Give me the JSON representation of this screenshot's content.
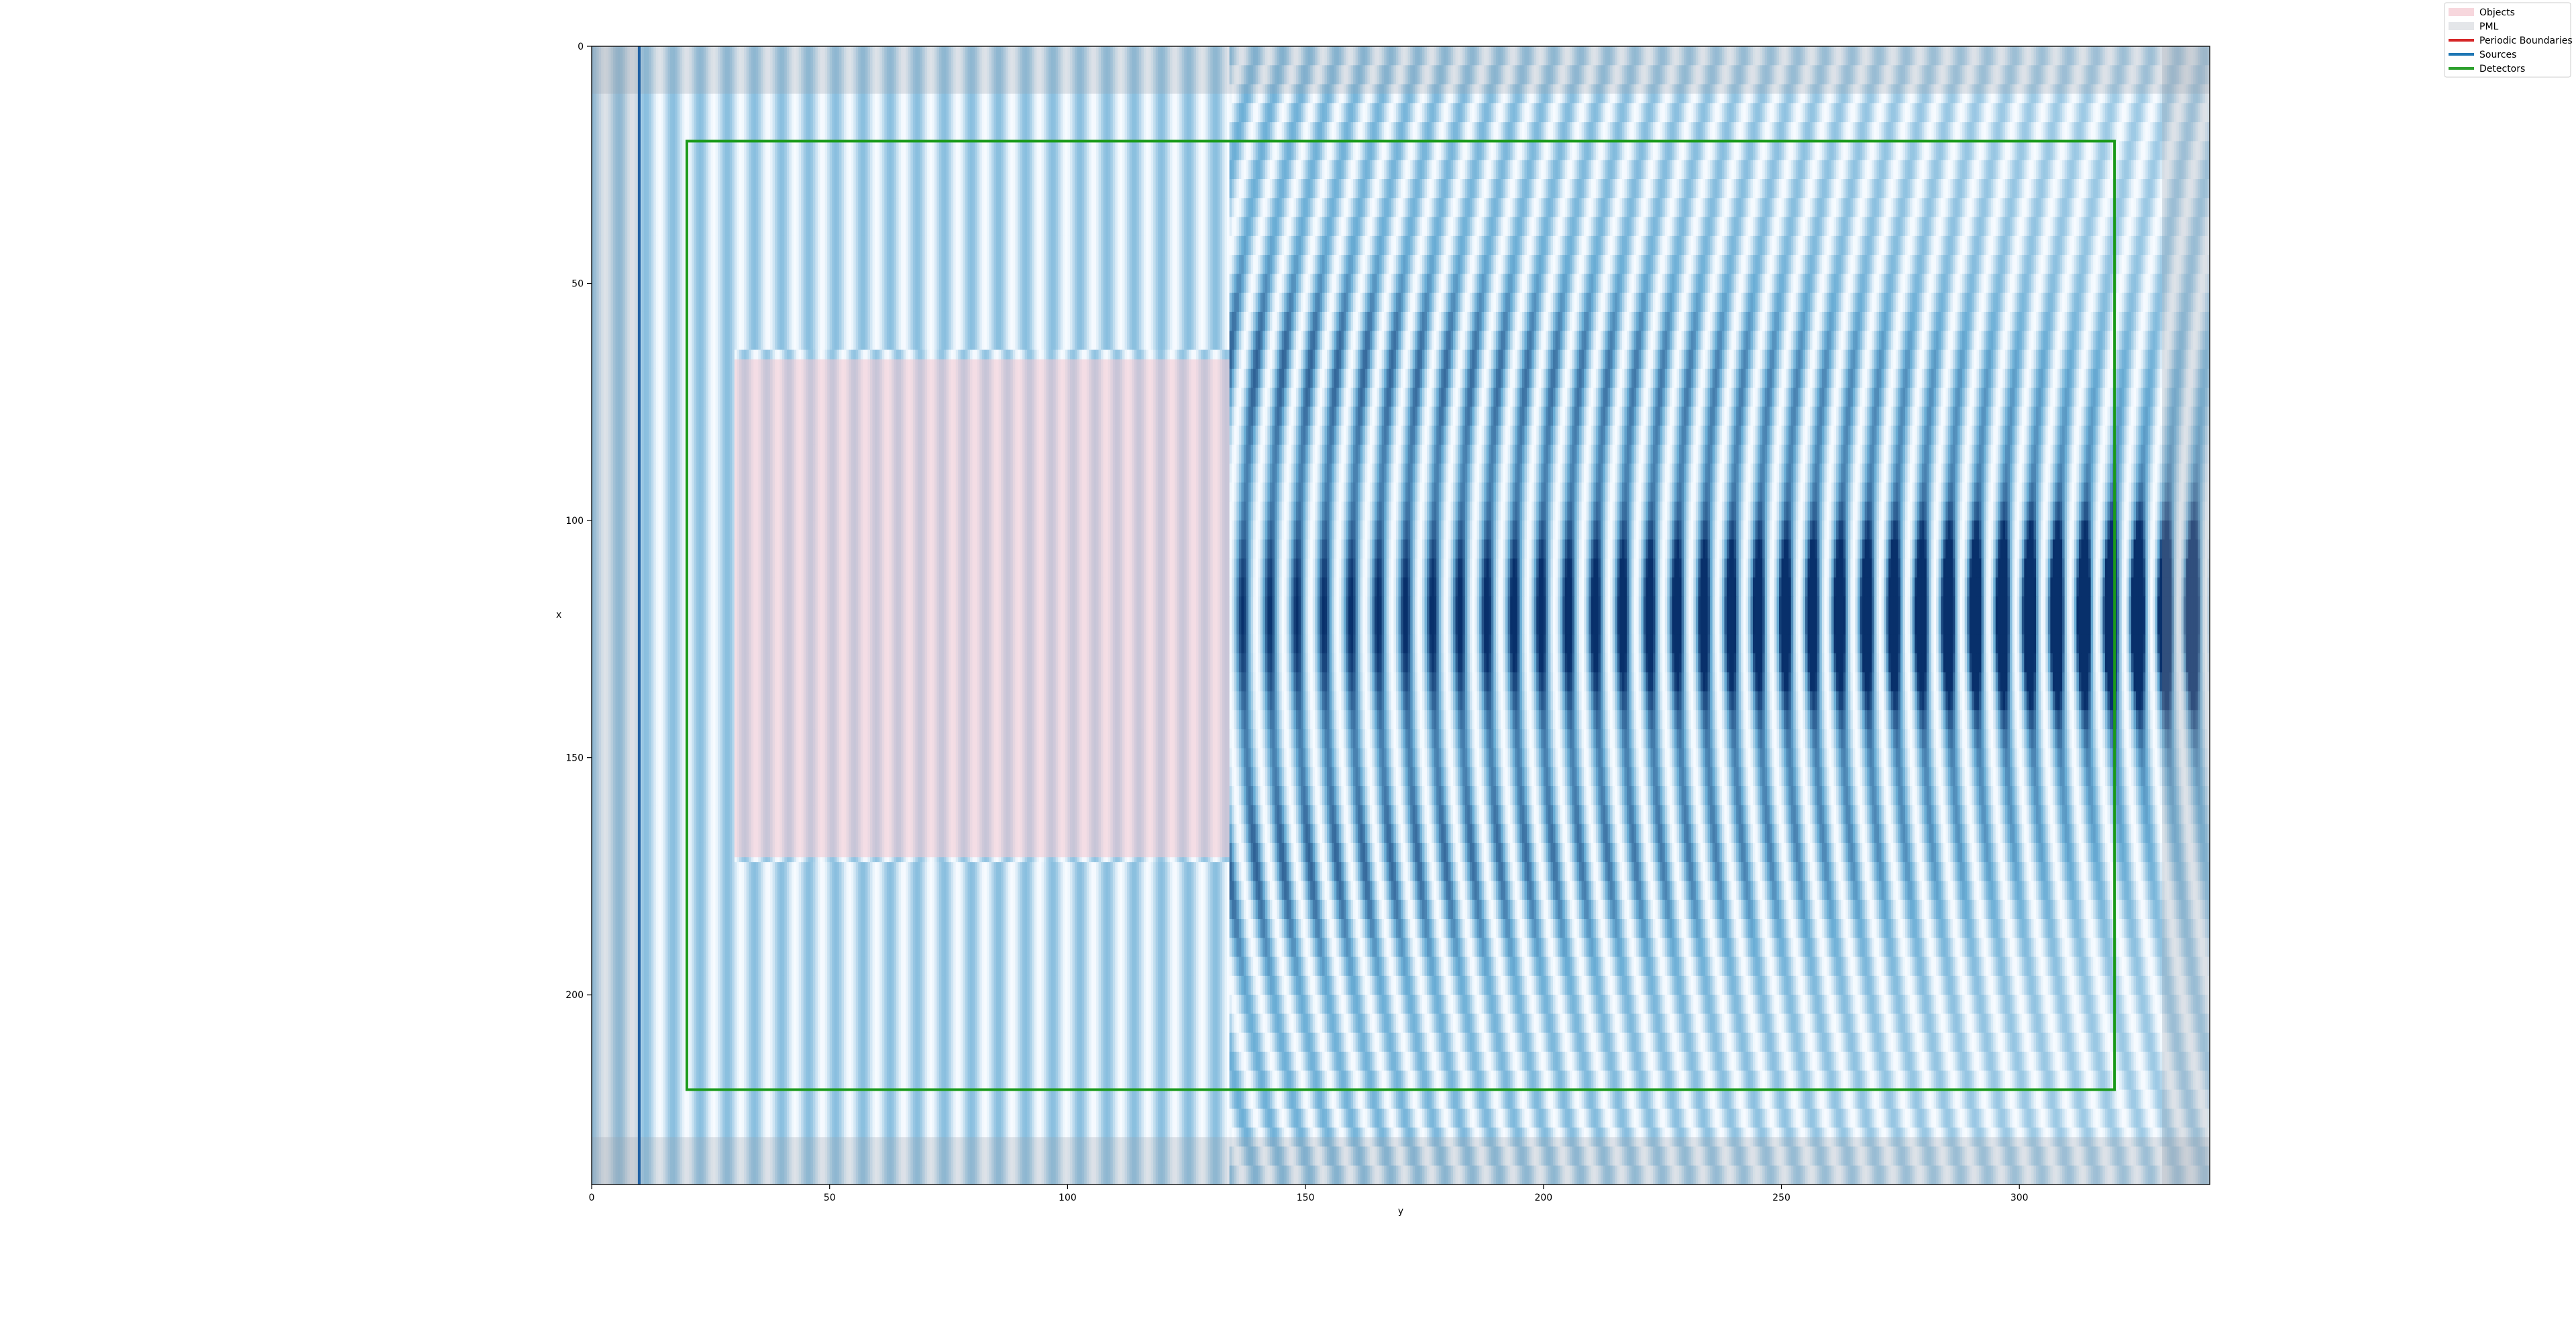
{
  "chart_data": {
    "type": "heatmap",
    "title": "",
    "xlabel": "y",
    "ylabel": "x",
    "xlim": [
      0,
      340
    ],
    "ylim": [
      240,
      0
    ],
    "x_ticks": [
      "0",
      "50",
      "100",
      "150",
      "200",
      "250",
      "300"
    ],
    "y_ticks": [
      "0",
      "50",
      "100",
      "150",
      "200"
    ],
    "colormap": "Blues",
    "field": {
      "wave_period": 5.7,
      "focus_x": 120,
      "focus_y": 330,
      "object_medium_period": 4.6
    },
    "objects": [
      {
        "name": "Objects",
        "x_range": [
          66,
          171
        ],
        "y_range": [
          30,
          134
        ],
        "color": "#f4c6cf"
      }
    ],
    "pml": [
      {
        "name": "PML",
        "x_range": [
          0,
          10
        ],
        "y_range": [
          0,
          340
        ]
      },
      {
        "name": "PML",
        "x_range": [
          230,
          240
        ],
        "y_range": [
          0,
          340
        ]
      },
      {
        "name": "PML",
        "x_range": [
          0,
          240
        ],
        "y_range": [
          0,
          10
        ]
      },
      {
        "name": "PML",
        "x_range": [
          0,
          240
        ],
        "y_range": [
          330,
          340
        ]
      }
    ],
    "sources": [
      {
        "name": "Sources",
        "y": 10,
        "x_range": [
          0,
          240
        ],
        "color": "#1f5fa3"
      }
    ],
    "detectors": [
      {
        "name": "Detectors",
        "x_range": [
          20,
          220
        ],
        "y_range": [
          20,
          320
        ],
        "color": "#1a9a1a"
      }
    ],
    "legend": {
      "placement": "top-right",
      "entries": [
        {
          "label": "Objects",
          "color": "#f4c6cf",
          "kind": "patch"
        },
        {
          "label": "PML",
          "color": "#d9dbe0",
          "kind": "patch"
        },
        {
          "label": "Periodic Boundaries",
          "color": "#d62728",
          "kind": "line"
        },
        {
          "label": "Sources",
          "color": "#1f77b4",
          "kind": "line"
        },
        {
          "label": "Detectors",
          "color": "#2ca02c",
          "kind": "line"
        }
      ]
    }
  }
}
